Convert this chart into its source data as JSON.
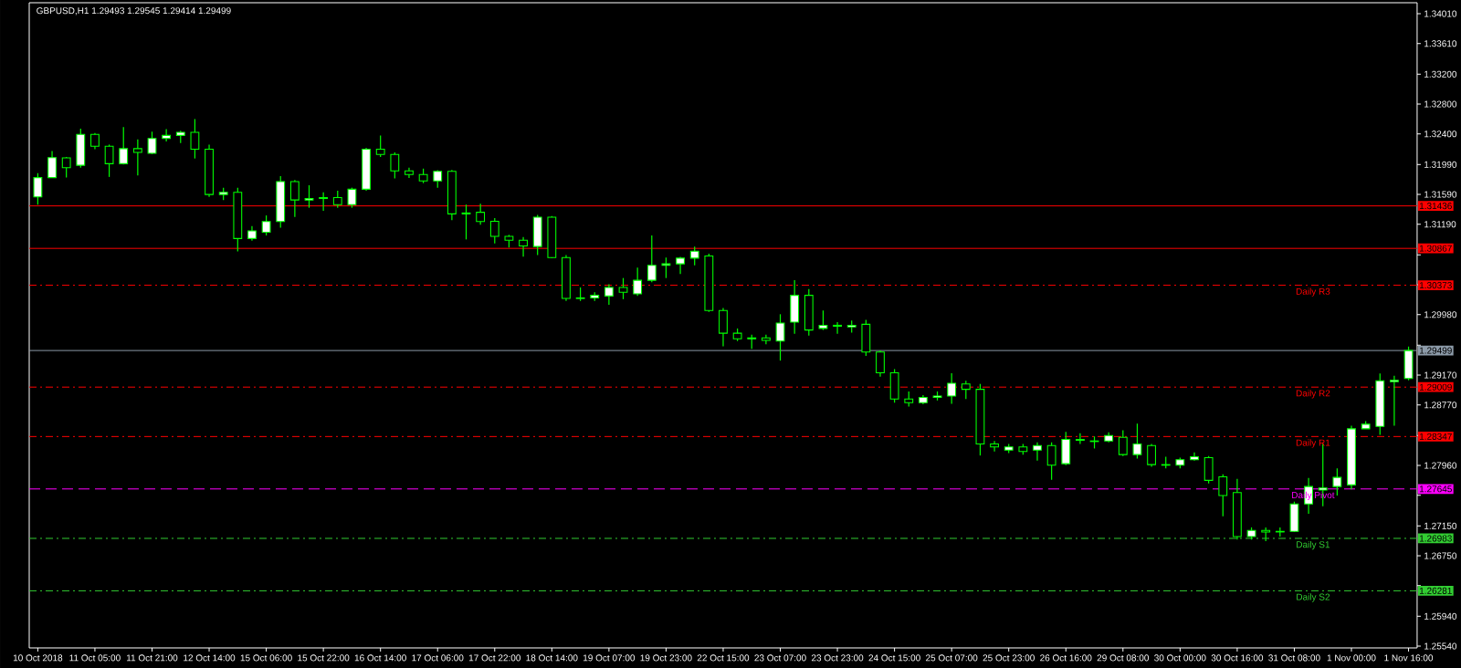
{
  "chart_data": {
    "type": "candlestick",
    "title": "GBPUSD,H1  1.29493 1.29545 1.29414 1.29499",
    "color": "#00ff00",
    "categories": [
      "10 Oct 2018",
      null,
      null,
      null,
      "11 Oct 05:00",
      null,
      null,
      null,
      "11 Oct 21:00",
      null,
      null,
      null,
      "12 Oct 14:00",
      null,
      null,
      null,
      "15 Oct 06:00",
      null,
      null,
      null,
      "15 Oct 22:00",
      null,
      null,
      null,
      "16 Oct 14:00",
      null,
      null,
      null,
      "17 Oct 06:00",
      null,
      null,
      null,
      "17 Oct 22:00",
      null,
      null,
      null,
      "18 Oct 14:00",
      null,
      null,
      null,
      "19 Oct 07:00",
      null,
      null,
      null,
      "19 Oct 23:00",
      null,
      null,
      null,
      "22 Oct 15:00",
      null,
      null,
      null,
      "23 Oct 07:00",
      null,
      null,
      null,
      "23 Oct 23:00",
      null,
      null,
      null,
      "24 Oct 15:00",
      null,
      null,
      null,
      "25 Oct 07:00",
      null,
      null,
      null,
      "25 Oct 23:00",
      null,
      null,
      null,
      "26 Oct 16:00",
      null,
      null,
      null,
      "29 Oct 08:00",
      null,
      null,
      null,
      "30 Oct 00:00",
      null,
      null,
      null,
      "30 Oct 16:00",
      null,
      null,
      null,
      "31 Oct 08:00",
      null,
      null,
      null,
      "1 Nov 00:00",
      null,
      null,
      null,
      "1 Nov 16:00"
    ],
    "ohlc": [
      [
        1.31556,
        1.31873,
        1.31453,
        1.31815
      ],
      [
        1.31815,
        1.3217,
        1.31811,
        1.32083
      ],
      [
        1.32079,
        1.32092,
        1.31815,
        1.31947
      ],
      [
        1.3198,
        1.32471,
        1.31947,
        1.32393
      ],
      [
        1.32393,
        1.32413,
        1.32195,
        1.32236
      ],
      [
        1.32236,
        1.32257,
        1.31824,
        1.32001
      ],
      [
        1.32001,
        1.32492,
        1.31989,
        1.32203
      ],
      [
        1.32203,
        1.32327,
        1.31844,
        1.32153
      ],
      [
        1.32141,
        1.3243,
        1.3213,
        1.32339
      ],
      [
        1.32339,
        1.32463,
        1.32298,
        1.3238
      ],
      [
        1.3238,
        1.32442,
        1.32277,
        1.32421
      ],
      [
        1.32421,
        1.32599,
        1.32071,
        1.32195
      ],
      [
        1.32195,
        1.32257,
        1.31556,
        1.31589
      ],
      [
        1.31589,
        1.31679,
        1.31515,
        1.31617
      ],
      [
        1.31617,
        1.31679,
        1.30826,
        1.30999
      ],
      [
        1.30999,
        1.31164,
        1.3097,
        1.31102
      ],
      [
        1.31082,
        1.31308,
        1.3104,
        1.31226
      ],
      [
        1.31226,
        1.31836,
        1.31143,
        1.31762
      ],
      [
        1.31762,
        1.31782,
        1.31288,
        1.31515
      ],
      [
        1.31515,
        1.31712,
        1.31411,
        1.31535
      ],
      [
        1.31535,
        1.31617,
        1.3137,
        1.31547
      ],
      [
        1.31547,
        1.31638,
        1.31411,
        1.31453
      ],
      [
        1.31453,
        1.3168,
        1.31411,
        1.31659
      ],
      [
        1.31659,
        1.32215,
        1.31638,
        1.32195
      ],
      [
        1.32195,
        1.3238,
        1.32092,
        1.32125
      ],
      [
        1.32125,
        1.32153,
        1.31803,
        1.31906
      ],
      [
        1.31906,
        1.31947,
        1.31811,
        1.31857
      ],
      [
        1.31857,
        1.31935,
        1.31741,
        1.3177
      ],
      [
        1.3177,
        1.31914,
        1.31679,
        1.31898
      ],
      [
        1.31898,
        1.31918,
        1.31246,
        1.31329
      ],
      [
        1.31329,
        1.31453,
        1.30987,
        1.31341
      ],
      [
        1.3135,
        1.31465,
        1.31185,
        1.31226
      ],
      [
        1.31229,
        1.31272,
        1.30934,
        1.31027
      ],
      [
        1.31027,
        1.31048,
        1.30879,
        1.30976
      ],
      [
        1.30976,
        1.31019,
        1.30757,
        1.309
      ],
      [
        1.30892,
        1.31314,
        1.30778,
        1.31284
      ],
      [
        1.31284,
        1.31301,
        1.30736,
        1.30744
      ],
      [
        1.30744,
        1.30778,
        1.30162,
        1.30196
      ],
      [
        1.30196,
        1.30343,
        1.30162,
        1.30204
      ],
      [
        1.30204,
        1.3028,
        1.30162,
        1.30238
      ],
      [
        1.30229,
        1.30386,
        1.30111,
        1.30343
      ],
      [
        1.30343,
        1.3047,
        1.30187,
        1.3028
      ],
      [
        1.30259,
        1.30609,
        1.30229,
        1.3044
      ],
      [
        1.3044,
        1.3104,
        1.30415,
        1.30639
      ],
      [
        1.30639,
        1.30744,
        1.3047,
        1.3066
      ],
      [
        1.3066,
        1.30753,
        1.30525,
        1.30736
      ],
      [
        1.30736,
        1.30892,
        1.30639,
        1.30829
      ],
      [
        1.30765,
        1.30795,
        1.30018,
        1.30035
      ],
      [
        1.30035,
        1.30069,
        1.29554,
        1.29731
      ],
      [
        1.29731,
        1.29795,
        1.29626,
        1.29656
      ],
      [
        1.29656,
        1.2971,
        1.29521,
        1.29668
      ],
      [
        1.29668,
        1.2971,
        1.29584,
        1.29635
      ],
      [
        1.29626,
        1.29985,
        1.29364,
        1.29866
      ],
      [
        1.29879,
        1.3044,
        1.29723,
        1.30238
      ],
      [
        1.30238,
        1.30322,
        1.29698,
        1.29774
      ],
      [
        1.29795,
        1.30035,
        1.29774,
        1.29837
      ],
      [
        1.29837,
        1.29879,
        1.29723,
        1.29824
      ],
      [
        1.29816,
        1.299,
        1.2974,
        1.29837
      ],
      [
        1.2985,
        1.29909,
        1.29428,
        1.29478
      ],
      [
        1.29478,
        1.295,
        1.2915,
        1.292
      ],
      [
        1.292,
        1.2925,
        1.288,
        1.2885
      ],
      [
        1.2885,
        1.2895,
        1.2875,
        1.288
      ],
      [
        1.288,
        1.289,
        1.2878,
        1.2887
      ],
      [
        1.2887,
        1.2895,
        1.2883,
        1.2889
      ],
      [
        1.2889,
        1.29195,
        1.28784,
        1.2906
      ],
      [
        1.29052,
        1.29093,
        1.28849,
        1.28979
      ],
      [
        1.28979,
        1.29052,
        1.28093,
        1.28247
      ],
      [
        1.28247,
        1.28288,
        1.28146,
        1.28207
      ],
      [
        1.28166,
        1.28247,
        1.28126,
        1.28207
      ],
      [
        1.28207,
        1.28247,
        1.28105,
        1.28146
      ],
      [
        1.28166,
        1.28268,
        1.28024,
        1.28227
      ],
      [
        1.28227,
        1.28268,
        1.27768,
        1.27963
      ],
      [
        1.27983,
        1.2841,
        1.27963,
        1.28308
      ],
      [
        1.28296,
        1.2839,
        1.28247,
        1.28308
      ],
      [
        1.28288,
        1.28349,
        1.28187,
        1.2828
      ],
      [
        1.28288,
        1.28402,
        1.28268,
        1.28361
      ],
      [
        1.28337,
        1.2843,
        1.28085,
        1.28105
      ],
      [
        1.28105,
        1.2852,
        1.28052,
        1.28247
      ],
      [
        1.28227,
        1.28247,
        1.27943,
        1.27971
      ],
      [
        1.27971,
        1.28077,
        1.27922,
        1.27963
      ],
      [
        1.27963,
        1.28065,
        1.27922,
        1.28036
      ],
      [
        1.28036,
        1.28134,
        1.28024,
        1.28077
      ],
      [
        1.28065,
        1.28085,
        1.27719,
        1.2776
      ],
      [
        1.27808,
        1.27841,
        1.2728,
        1.27556
      ],
      [
        1.27597,
        1.2778,
        1.26967,
        1.27008
      ],
      [
        1.27008,
        1.2713,
        1.26967,
        1.27089
      ],
      [
        1.27089,
        1.2713,
        1.26946,
        1.27069
      ],
      [
        1.27069,
        1.2713,
        1.27008,
        1.27077
      ],
      [
        1.27077,
        1.27475,
        1.27069,
        1.27443
      ],
      [
        1.27443,
        1.27792,
        1.27313,
        1.27678
      ],
      [
        1.2763,
        1.28247,
        1.27414,
        1.27658
      ],
      [
        1.27678,
        1.27922,
        1.27556,
        1.278
      ],
      [
        1.27699,
        1.28491,
        1.27638,
        1.28451
      ],
      [
        1.28451,
        1.28552,
        1.28451,
        1.28512
      ],
      [
        1.28483,
        1.29191,
        1.28369,
        1.29093
      ],
      [
        1.29081,
        1.29162,
        1.28491,
        1.29101
      ],
      [
        1.29124,
        1.29552,
        1.291,
        1.29499
      ]
    ],
    "ylim": [
      1.25516,
      1.34157
    ],
    "yticks": [
      {
        "value": 1.3401,
        "label": "1.34010"
      },
      {
        "value": 1.3361,
        "label": "1.33610"
      },
      {
        "value": 1.332,
        "label": "1.33200"
      },
      {
        "value": 1.328,
        "label": "1.32800"
      },
      {
        "value": 1.324,
        "label": "1.32400"
      },
      {
        "value": 1.3199,
        "label": "1.31990"
      },
      {
        "value": 1.3159,
        "label": "1.31590"
      },
      {
        "value": 1.3119,
        "label": "1.31190"
      },
      {
        "value": 1.3078,
        "label": null
      },
      {
        "value": 1.3038,
        "label": null
      },
      {
        "value": 1.2998,
        "label": "1.29980"
      },
      {
        "value": 1.2957,
        "label": null
      },
      {
        "value": 1.2917,
        "label": "1.29170"
      },
      {
        "value": 1.2877,
        "label": "1.28770"
      },
      {
        "value": 1.2836,
        "label": null
      },
      {
        "value": 1.2796,
        "label": "1.27960"
      },
      {
        "value": 1.2756,
        "label": null
      },
      {
        "value": 1.2715,
        "label": "1.27150"
      },
      {
        "value": 1.2675,
        "label": "1.26750"
      },
      {
        "value": 1.2635,
        "label": null
      },
      {
        "value": 1.2594,
        "label": "1.25940"
      },
      {
        "value": 1.2554,
        "label": "1.25540"
      }
    ],
    "ref_lines": [
      {
        "axis": "y",
        "value": 1.31436,
        "color": "#ff0000",
        "line_style": "solid"
      },
      {
        "axis": "y",
        "value": 1.30867,
        "color": "#ff0000",
        "line_style": "solid"
      },
      {
        "axis": "y",
        "value": 1.30373,
        "label": "Daily R3",
        "color": "#ff0000",
        "line_style": "dashdot"
      },
      {
        "axis": "y",
        "value": 1.29499,
        "color": "#8c9aa8",
        "line_style": "solid"
      },
      {
        "axis": "y",
        "value": 1.29009,
        "label": "Daily R2",
        "color": "#ff0000",
        "line_style": "dashdot"
      },
      {
        "axis": "y",
        "value": 1.28347,
        "label": "Daily R1",
        "color": "#ff0000",
        "line_style": "dashdot"
      },
      {
        "axis": "y",
        "value": 1.27645,
        "label": "Daily Pivot",
        "color": "#ff00ff",
        "line_style": "dashed"
      },
      {
        "axis": "y",
        "value": 1.26983,
        "label": "Daily S1",
        "color": "#32cd32",
        "line_style": "dashdot"
      },
      {
        "axis": "y",
        "value": 1.26281,
        "label": "Daily S2",
        "color": "#32cd32",
        "line_style": "dashdot"
      }
    ],
    "annotations": [
      "1.31436",
      "1.30867",
      "1.30373",
      "1.29499",
      "1.29009",
      "1.28347",
      "1.27645",
      "1.26983",
      "1.26281"
    ]
  }
}
